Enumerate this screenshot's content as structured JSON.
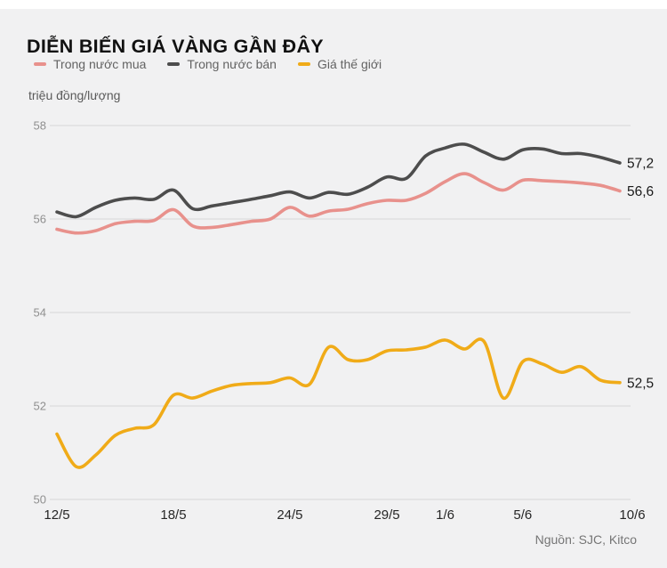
{
  "page": {
    "title": "DIỄN BIẾN GIÁ VÀNG GẦN ĐÂY",
    "unit_label": "triệu đồng/lượng",
    "source": "Nguồn: SJC, Kitco"
  },
  "colors": {
    "background": "#f1f1f2",
    "grid": "#d8d8d8",
    "buy_line": "#e8918c",
    "sell_line": "#4d4d4d",
    "world_line": "#f0ab18"
  },
  "chart_data": {
    "type": "line",
    "title": "DIỄN BIẾN GIÁ VÀNG GẦN ĐÂY",
    "ylabel": "triệu đồng/lượng",
    "xlabel": "",
    "ylim": [
      50,
      58
    ],
    "y_ticks": [
      50,
      52,
      54,
      56,
      58
    ],
    "grid": true,
    "legend_position": "top",
    "x": [
      "12/5",
      "13/5",
      "14/5",
      "15/5",
      "16/5",
      "17/5",
      "18/5",
      "19/5",
      "20/5",
      "21/5",
      "22/5",
      "23/5",
      "24/5",
      "25/5",
      "26/5",
      "27/5",
      "28/5",
      "29/5",
      "30/5",
      "31/5",
      "1/6",
      "2/6",
      "3/6",
      "4/6",
      "5/6",
      "6/6",
      "7/6",
      "8/6",
      "9/6",
      "10/6"
    ],
    "x_ticks_shown": [
      "12/5",
      "18/5",
      "24/5",
      "29/5",
      "1/6",
      "5/6",
      "10/6"
    ],
    "series": [
      {
        "name": "Trong nước mua",
        "color": "#e8918c",
        "end_label": "56,6",
        "values": [
          55.78,
          55.7,
          55.75,
          55.9,
          55.95,
          55.97,
          56.2,
          55.85,
          55.82,
          55.88,
          55.95,
          56.0,
          56.25,
          56.06,
          56.17,
          56.21,
          56.33,
          56.4,
          56.4,
          56.55,
          56.8,
          56.97,
          56.78,
          56.62,
          56.83,
          56.82,
          56.8,
          56.77,
          56.72,
          56.6
        ]
      },
      {
        "name": "Trong nước bán",
        "color": "#4d4d4d",
        "end_label": "57,2",
        "values": [
          56.15,
          56.05,
          56.25,
          56.4,
          56.45,
          56.42,
          56.62,
          56.22,
          56.28,
          56.35,
          56.42,
          56.5,
          56.58,
          56.45,
          56.57,
          56.53,
          56.68,
          56.9,
          56.87,
          57.35,
          57.52,
          57.6,
          57.43,
          57.28,
          57.48,
          57.5,
          57.4,
          57.4,
          57.32,
          57.2
        ]
      },
      {
        "name": "Giá thế giới",
        "color": "#f0ab18",
        "end_label": "52,5",
        "values": [
          51.4,
          50.7,
          50.95,
          51.37,
          51.52,
          51.6,
          52.23,
          52.17,
          52.32,
          52.44,
          52.48,
          52.5,
          52.6,
          52.46,
          53.26,
          52.99,
          52.99,
          53.18,
          53.2,
          53.26,
          53.41,
          53.22,
          53.38,
          52.17,
          52.95,
          52.9,
          52.72,
          52.84,
          52.55,
          52.5
        ]
      }
    ],
    "source": "Nguồn: SJC, Kitco"
  }
}
